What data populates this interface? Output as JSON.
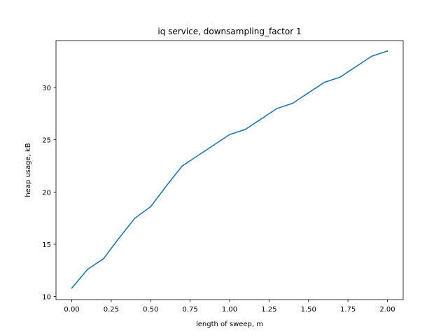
{
  "chart_data": {
    "type": "line",
    "title": "iq service, downsampling_factor 1",
    "xlabel": "length of sweep, m",
    "ylabel": "heap usage, kB",
    "xlim": [
      -0.1,
      2.1
    ],
    "ylim": [
      9.7,
      34.5
    ],
    "xticks": [
      0.0,
      0.25,
      0.5,
      0.75,
      1.0,
      1.25,
      1.5,
      1.75,
      2.0
    ],
    "xtick_labels": [
      "0.00",
      "0.25",
      "0.50",
      "0.75",
      "1.00",
      "1.25",
      "1.50",
      "1.75",
      "2.00"
    ],
    "yticks": [
      10,
      15,
      20,
      25,
      30
    ],
    "ytick_labels": [
      "10",
      "15",
      "20",
      "25",
      "30"
    ],
    "grid": false,
    "series": [
      {
        "color": "#1f77b4",
        "x": [
          0.0,
          0.1,
          0.2,
          0.3,
          0.4,
          0.5,
          0.6,
          0.7,
          0.8,
          0.9,
          1.0,
          1.1,
          1.2,
          1.3,
          1.4,
          1.5,
          1.6,
          1.7,
          1.8,
          1.9,
          2.0
        ],
        "y": [
          10.8,
          12.6,
          13.6,
          15.6,
          17.5,
          18.6,
          20.6,
          22.5,
          23.5,
          24.5,
          25.5,
          26.0,
          27.0,
          28.0,
          28.5,
          29.5,
          30.5,
          31.0,
          32.0,
          33.0,
          33.5
        ]
      }
    ]
  }
}
